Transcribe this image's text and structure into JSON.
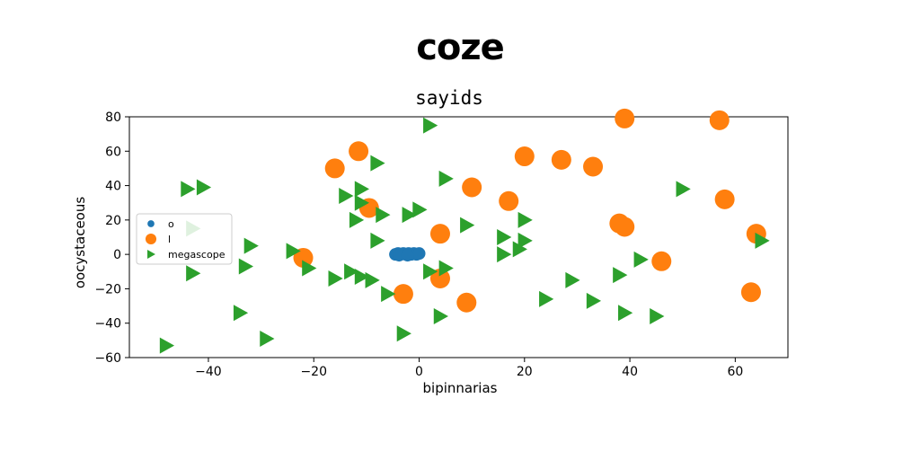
{
  "title": "coze",
  "chart_data": {
    "type": "scatter",
    "subtitle": "sayids",
    "xlabel": "bipinnarias",
    "ylabel": "oocystaceous",
    "xlim": [
      -55,
      70
    ],
    "ylim": [
      -60,
      80
    ],
    "xticks": [
      -40,
      -20,
      0,
      20,
      40,
      60
    ],
    "yticks": [
      -60,
      -40,
      -20,
      0,
      20,
      40,
      60,
      80
    ],
    "grid": false,
    "legend_position": "center-left",
    "series": [
      {
        "name": "o",
        "marker": "circle-small",
        "color": "#1f77b4",
        "points": [
          [
            -4.5,
            0
          ],
          [
            -4,
            0.5
          ],
          [
            -3.5,
            0
          ],
          [
            -3,
            0.5
          ],
          [
            -2.5,
            0
          ],
          [
            -2,
            0.5
          ],
          [
            -1.5,
            0
          ],
          [
            -1,
            0.5
          ],
          [
            -0.5,
            0
          ],
          [
            0,
            0.5
          ],
          [
            -3.8,
            -0.5
          ],
          [
            -2.2,
            -0.5
          ]
        ]
      },
      {
        "name": "l",
        "marker": "circle-large",
        "color": "#ff7f0e",
        "points": [
          [
            -11.5,
            60
          ],
          [
            -16,
            50
          ],
          [
            -9.5,
            27
          ],
          [
            -22,
            -2
          ],
          [
            -3,
            -23
          ],
          [
            4,
            12
          ],
          [
            4,
            -14
          ],
          [
            9,
            -28
          ],
          [
            10,
            39
          ],
          [
            17,
            31
          ],
          [
            20,
            57
          ],
          [
            27,
            55
          ],
          [
            33,
            51
          ],
          [
            39,
            79
          ],
          [
            38,
            18
          ],
          [
            39,
            16
          ],
          [
            46,
            -4
          ],
          [
            57,
            78
          ],
          [
            58,
            32
          ],
          [
            64,
            12
          ],
          [
            63,
            -22
          ]
        ]
      },
      {
        "name": "megascope",
        "marker": "triangle-right",
        "color": "#2ca02c",
        "points": [
          [
            2,
            75
          ],
          [
            -8,
            53
          ],
          [
            5,
            44
          ],
          [
            -44,
            38
          ],
          [
            -41,
            39
          ],
          [
            -14,
            34
          ],
          [
            -11,
            38
          ],
          [
            -11,
            30
          ],
          [
            -12,
            20
          ],
          [
            -7,
            23
          ],
          [
            -2,
            23
          ],
          [
            0,
            26
          ],
          [
            9,
            17
          ],
          [
            16,
            10
          ],
          [
            20,
            20
          ],
          [
            20,
            8
          ],
          [
            19,
            3
          ],
          [
            16,
            0
          ],
          [
            -8,
            8
          ],
          [
            -32,
            5
          ],
          [
            -43,
            15
          ],
          [
            -33,
            -7
          ],
          [
            -43,
            -11
          ],
          [
            -24,
            2
          ],
          [
            -21,
            -8
          ],
          [
            -16,
            -14
          ],
          [
            -13,
            -10
          ],
          [
            -11,
            -13
          ],
          [
            -9,
            -15
          ],
          [
            -6,
            -23
          ],
          [
            2,
            -10
          ],
          [
            5,
            -8
          ],
          [
            -3,
            -46
          ],
          [
            4,
            -36
          ],
          [
            -48,
            -53
          ],
          [
            -29,
            -49
          ],
          [
            -34,
            -34
          ],
          [
            24,
            -26
          ],
          [
            29,
            -15
          ],
          [
            33,
            -27
          ],
          [
            38,
            -12
          ],
          [
            42,
            -3
          ],
          [
            39,
            -34
          ],
          [
            45,
            -36
          ],
          [
            50,
            38
          ],
          [
            65,
            8
          ]
        ]
      }
    ]
  }
}
